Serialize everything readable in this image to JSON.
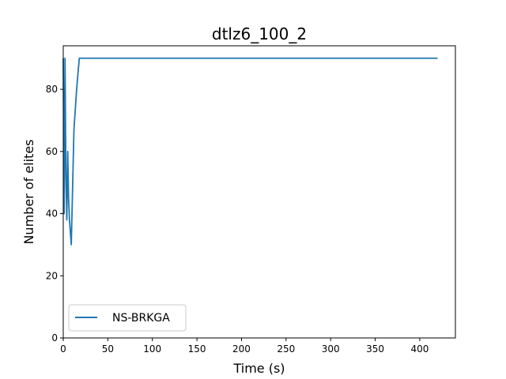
{
  "chart_data": {
    "type": "line",
    "title": "dtlz6_100_2",
    "xlabel": "Time (s)",
    "ylabel": "Number of elites",
    "xlim": [
      0,
      440
    ],
    "ylim": [
      0,
      94
    ],
    "xticks": [
      0,
      50,
      100,
      150,
      200,
      250,
      300,
      350,
      400
    ],
    "yticks": [
      0,
      20,
      40,
      60,
      80
    ],
    "grid": false,
    "legend_position": "lower-left",
    "colors": {
      "series": "#1f77b4"
    },
    "series": [
      {
        "name": "NS-BRKGA",
        "x": [
          0,
          1,
          2,
          3,
          4,
          5,
          6,
          7,
          9,
          12,
          15,
          18,
          20,
          50,
          100,
          200,
          300,
          420
        ],
        "y": [
          90,
          40,
          90,
          52,
          38,
          60,
          45,
          38,
          30,
          67,
          80,
          90,
          90,
          90,
          90,
          90,
          90,
          90
        ]
      }
    ]
  }
}
